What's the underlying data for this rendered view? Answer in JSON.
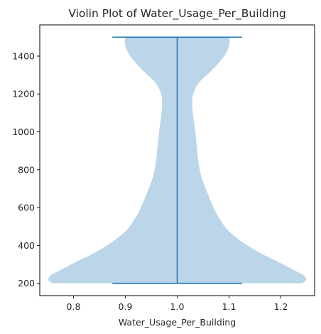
{
  "chart_data": {
    "type": "violin",
    "title": "Violin Plot of Water_Usage_Per_Building",
    "xlabel": "Water_Usage_Per_Building",
    "ylabel": "",
    "xlim": [
      0.735,
      1.265
    ],
    "ylim": [
      135,
      1565
    ],
    "x_ticks": [
      0.8,
      0.9,
      1.0,
      1.1,
      1.2
    ],
    "x_tick_labels": [
      "0.8",
      "0.9",
      "1.0",
      "1.1",
      "1.2"
    ],
    "y_ticks": [
      200,
      400,
      600,
      800,
      1000,
      1200,
      1400
    ],
    "y_tick_labels": [
      "200",
      "400",
      "600",
      "800",
      "1000",
      "1200",
      "1400"
    ],
    "grid": false,
    "violin": {
      "position": 1.0,
      "min": 200,
      "max": 1500,
      "cap_half_width": 0.125,
      "fill_color": "#1f77b4",
      "fill_opacity": 0.3,
      "line_color": "#1f77b4",
      "density_half_width": [
        {
          "y": 200,
          "w": 0.24
        },
        {
          "y": 215,
          "w": 0.248
        },
        {
          "y": 240,
          "w": 0.245
        },
        {
          "y": 270,
          "w": 0.225
        },
        {
          "y": 320,
          "w": 0.19
        },
        {
          "y": 360,
          "w": 0.16
        },
        {
          "y": 420,
          "w": 0.125
        },
        {
          "y": 480,
          "w": 0.098
        },
        {
          "y": 540,
          "w": 0.082
        },
        {
          "y": 600,
          "w": 0.07
        },
        {
          "y": 680,
          "w": 0.058
        },
        {
          "y": 760,
          "w": 0.047
        },
        {
          "y": 840,
          "w": 0.041
        },
        {
          "y": 920,
          "w": 0.038
        },
        {
          "y": 1000,
          "w": 0.035
        },
        {
          "y": 1080,
          "w": 0.031
        },
        {
          "y": 1150,
          "w": 0.029
        },
        {
          "y": 1200,
          "w": 0.031
        },
        {
          "y": 1260,
          "w": 0.042
        },
        {
          "y": 1320,
          "w": 0.065
        },
        {
          "y": 1380,
          "w": 0.085
        },
        {
          "y": 1430,
          "w": 0.097
        },
        {
          "y": 1470,
          "w": 0.101
        },
        {
          "y": 1500,
          "w": 0.1
        }
      ]
    }
  }
}
